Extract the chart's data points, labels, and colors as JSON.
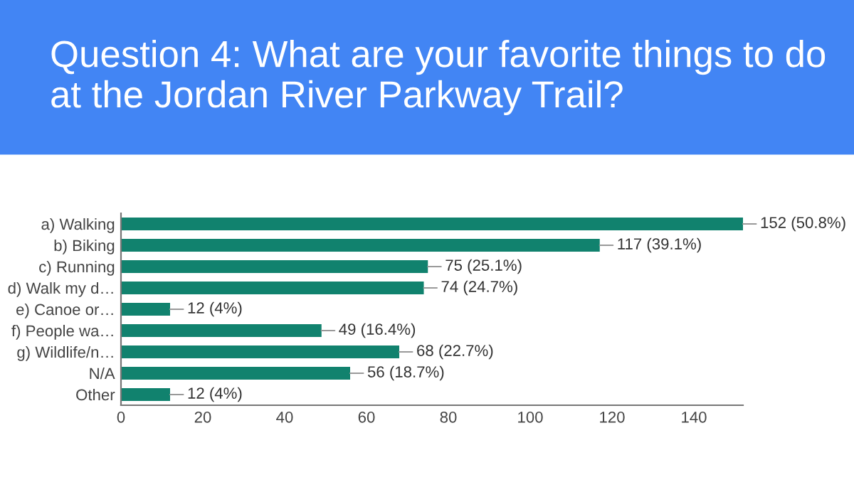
{
  "chart_data": {
    "type": "bar",
    "orientation": "horizontal",
    "title": "Question 4: What are your favorite things to do at the Jordan River Parkway Trail?",
    "categories": [
      "a) Walking",
      "b) Biking",
      "c) Running",
      "d) Walk my d…",
      "e) Canoe or…",
      "f) People wa…",
      "g) Wildlife/n…",
      "N/A",
      "Other"
    ],
    "values": [
      152,
      117,
      75,
      74,
      12,
      49,
      68,
      56,
      12
    ],
    "value_labels": [
      "152 (50.8%)",
      "117 (39.1%)",
      "75 (25.1%)",
      "74 (24.7%)",
      "12 (4%)",
      "49 (16.4%)",
      "68 (22.7%)",
      "56 (18.7%)",
      "12 (4%)"
    ],
    "color": "#11826e",
    "xlim": [
      0,
      152
    ],
    "xticks": [
      0,
      20,
      40,
      60,
      80,
      100,
      120,
      140
    ],
    "grid": false,
    "legend": false
  }
}
